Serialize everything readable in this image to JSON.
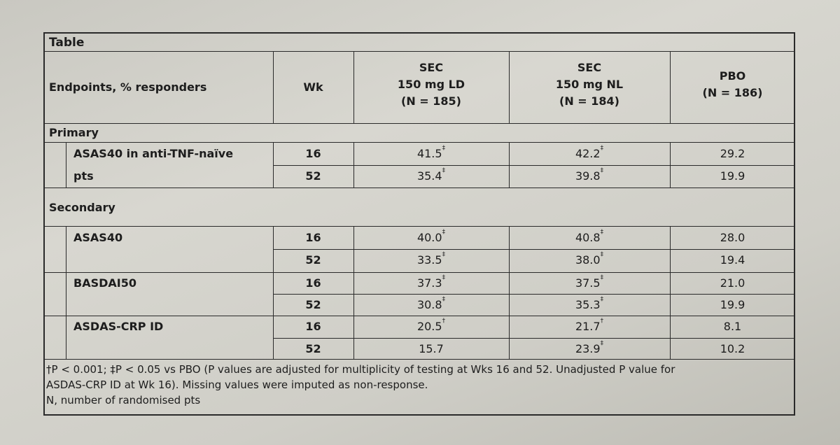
{
  "table": {
    "title": "Table",
    "headers": {
      "endpoint": "Endpoints, % responders",
      "wk": "Wk",
      "col1_line1": "SEC",
      "col1_line2": "150 mg LD",
      "col1_line3": "(N = 185)",
      "col2_line1": "SEC",
      "col2_line2": "150 mg NL",
      "col2_line3": "(N = 184)",
      "col3_line1": "PBO",
      "col3_line2": "(N = 186)"
    },
    "sections": {
      "primary": "Primary",
      "secondary": "Secondary"
    },
    "rows": [
      {
        "endpoint": "ASAS40 in anti-TNF-naïve",
        "wk": "16",
        "ld": "41.5",
        "ld_mark": "‡",
        "nl": "42.2",
        "nl_mark": "‡",
        "pbo": "29.2"
      },
      {
        "endpoint": "pts",
        "wk": "52",
        "ld": "35.4",
        "ld_mark": "‡",
        "nl": "39.8",
        "nl_mark": "‡",
        "pbo": "19.9"
      },
      {
        "endpoint": "ASAS40",
        "wk": "16",
        "ld": "40.0",
        "ld_mark": "‡",
        "nl": "40.8",
        "nl_mark": "‡",
        "pbo": "28.0"
      },
      {
        "endpoint": "",
        "wk": "52",
        "ld": "33.5",
        "ld_mark": "‡",
        "nl": "38.0",
        "nl_mark": "‡",
        "pbo": "19.4"
      },
      {
        "endpoint": "BASDAI50",
        "wk": "16",
        "ld": "37.3",
        "ld_mark": "‡",
        "nl": "37.5",
        "nl_mark": "‡",
        "pbo": "21.0"
      },
      {
        "endpoint": "",
        "wk": "52",
        "ld": "30.8",
        "ld_mark": "‡",
        "nl": "35.3",
        "nl_mark": "‡",
        "pbo": "19.9"
      },
      {
        "endpoint": "ASDAS-CRP ID",
        "wk": "16",
        "ld": "20.5",
        "ld_mark": "†",
        "nl": "21.7",
        "nl_mark": "†",
        "pbo": "8.1"
      },
      {
        "endpoint": "",
        "wk": "52",
        "ld": "15.7",
        "ld_mark": "",
        "nl": "23.9",
        "nl_mark": "‡",
        "pbo": "10.2"
      }
    ],
    "footnotes": {
      "line1": "†P < 0.001; ‡P < 0.05 vs PBO (P values are adjusted for multiplicity of testing at Wks 16 and 52. Unadjusted P value for",
      "line2": "ASDAS-CRP ID at Wk 16). Missing values were imputed as non-response.",
      "line3": "N, number of randomised pts"
    }
  }
}
